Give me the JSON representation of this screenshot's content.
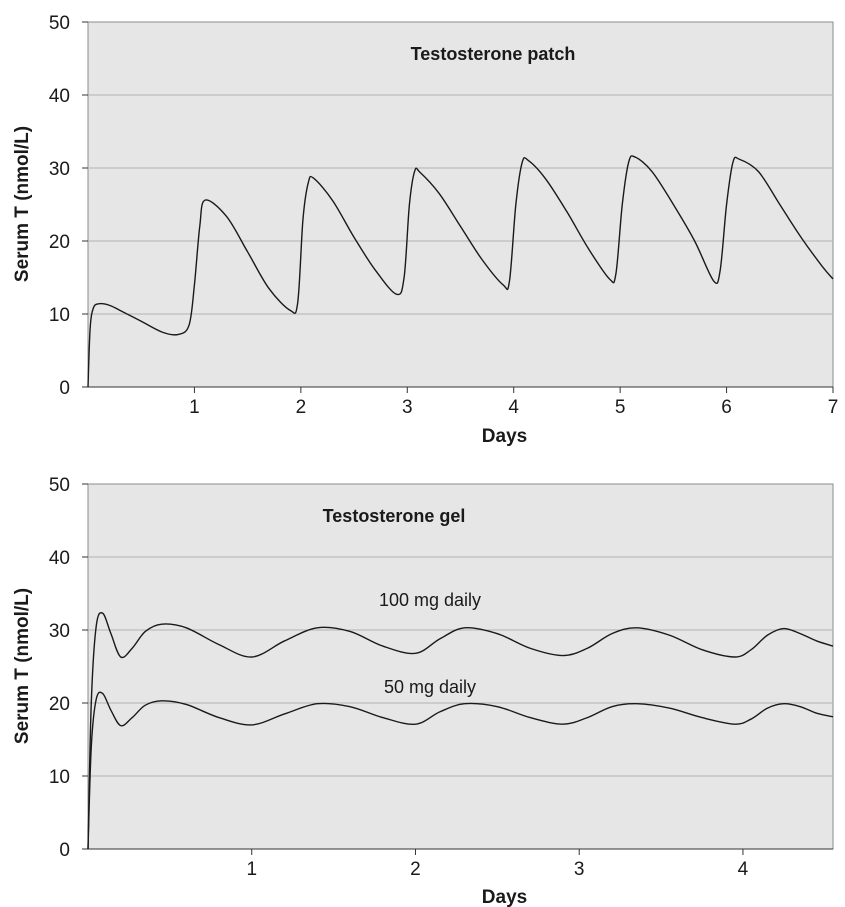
{
  "chart_data": [
    {
      "type": "line",
      "title": "Testosterone patch",
      "xlabel": "Days",
      "ylabel": "Serum T (nmol/L)",
      "xlim": [
        0,
        7
      ],
      "ylim": [
        0,
        50
      ],
      "x_ticks": [
        1,
        2,
        3,
        4,
        5,
        6,
        7
      ],
      "y_ticks": [
        0,
        10,
        20,
        30,
        40,
        50
      ],
      "grid": true,
      "colors": {
        "plot_bg": "#e6e6e6",
        "line": "#1a1a1a",
        "grid": "#b3b3b3"
      },
      "series": [
        {
          "x": [
            0.0,
            0.02,
            0.05,
            0.1,
            0.2,
            0.3,
            0.5,
            0.7,
            0.85,
            0.95,
            1.0,
            1.05,
            1.1,
            1.3,
            1.5,
            1.7,
            1.9,
            1.97,
            2.02,
            2.07,
            2.12,
            2.3,
            2.5,
            2.7,
            2.9,
            2.97,
            3.02,
            3.07,
            3.12,
            3.3,
            3.5,
            3.7,
            3.9,
            3.96,
            4.02,
            4.08,
            4.14,
            4.3,
            4.5,
            4.7,
            4.9,
            4.96,
            5.02,
            5.08,
            5.14,
            5.3,
            5.5,
            5.7,
            5.88,
            5.94,
            6.0,
            6.06,
            6.12,
            6.3,
            6.5,
            6.7,
            6.9,
            7.0
          ],
          "y": [
            0,
            8,
            10.8,
            11.4,
            11.2,
            10.5,
            9.0,
            7.5,
            7.2,
            8.5,
            14,
            22,
            25.6,
            23.4,
            18.5,
            13.5,
            10.5,
            11.5,
            23,
            28,
            28.6,
            25.5,
            20.5,
            16,
            12.7,
            15,
            25,
            29.6,
            29.4,
            26.5,
            22,
            17.5,
            14,
            14.5,
            25,
            30.8,
            31,
            28.5,
            24,
            19,
            14.8,
            15.5,
            25,
            30.8,
            31.5,
            29.5,
            25,
            20,
            14.5,
            16,
            25,
            30.8,
            31.2,
            29.5,
            25,
            20.5,
            16.5,
            14.8
          ]
        }
      ],
      "annotations": []
    },
    {
      "type": "line",
      "title": "Testosterone gel",
      "xlabel": "Days",
      "ylabel": "Serum T (nmol/L)",
      "xlim": [
        0,
        4.55
      ],
      "ylim": [
        0,
        50
      ],
      "x_ticks": [
        1,
        2,
        3,
        4
      ],
      "y_ticks": [
        0,
        10,
        20,
        30,
        40,
        50
      ],
      "grid": true,
      "colors": {
        "plot_bg": "#e6e6e6",
        "line": "#1a1a1a",
        "grid": "#b3b3b3"
      },
      "series": [
        {
          "name": "100 mg daily",
          "x": [
            0.0,
            0.02,
            0.05,
            0.09,
            0.14,
            0.2,
            0.27,
            0.35,
            0.45,
            0.6,
            0.8,
            1.0,
            1.2,
            1.4,
            1.6,
            1.8,
            2.0,
            2.15,
            2.3,
            2.5,
            2.7,
            2.9,
            3.05,
            3.2,
            3.35,
            3.55,
            3.75,
            3.95,
            4.05,
            4.15,
            4.25,
            4.35,
            4.45,
            4.55
          ],
          "y": [
            0,
            20,
            30.5,
            32.3,
            29.5,
            26.3,
            27.5,
            29.8,
            30.8,
            30.3,
            28,
            26.3,
            28.5,
            30.3,
            29.8,
            27.8,
            26.8,
            28.8,
            30.3,
            29.5,
            27.5,
            26.5,
            27.5,
            29.5,
            30.3,
            29.3,
            27.3,
            26.3,
            27.3,
            29.3,
            30.2,
            29.5,
            28.5,
            27.8
          ]
        },
        {
          "name": "50 mg daily",
          "x": [
            0.0,
            0.02,
            0.05,
            0.09,
            0.14,
            0.2,
            0.27,
            0.35,
            0.45,
            0.6,
            0.8,
            1.0,
            1.2,
            1.4,
            1.6,
            1.8,
            2.0,
            2.15,
            2.3,
            2.5,
            2.7,
            2.9,
            3.05,
            3.2,
            3.35,
            3.55,
            3.75,
            3.95,
            4.05,
            4.15,
            4.25,
            4.35,
            4.45,
            4.55
          ],
          "y": [
            0,
            14,
            20.5,
            21.3,
            19,
            16.9,
            18,
            19.7,
            20.3,
            19.8,
            18,
            17,
            18.5,
            19.9,
            19.5,
            18,
            17.1,
            18.8,
            19.9,
            19.5,
            18,
            17.1,
            18,
            19.5,
            19.9,
            19.3,
            18,
            17.1,
            17.8,
            19.3,
            19.9,
            19.5,
            18.6,
            18.1
          ]
        }
      ],
      "annotations": [
        "100 mg daily",
        "50 mg daily"
      ]
    }
  ]
}
